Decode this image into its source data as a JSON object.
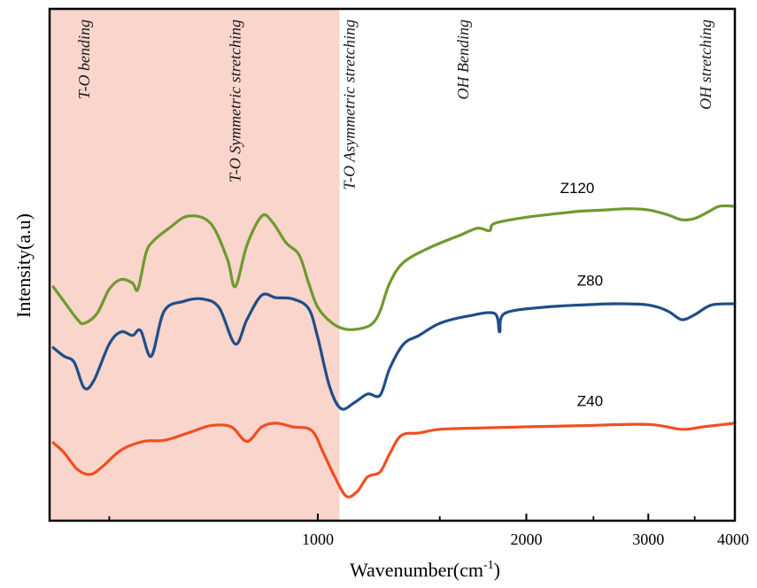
{
  "chart_data": {
    "type": "line",
    "title": "",
    "xlabel": "Wavenumber(cm",
    "xlabel_sup": "-1",
    "xlabel_close": ")",
    "ylabel": "Intensity(a.u)",
    "xscale": "log",
    "xlim": [
      410,
      4000
    ],
    "x_ticks": [
      1000,
      2000,
      3000,
      4000
    ],
    "x_tick_labels": [
      "1000",
      "2000",
      "3000",
      "4000"
    ],
    "x_minor_ticks": [
      500,
      1500,
      2500,
      3500
    ],
    "grid": false,
    "legend": "none",
    "shaded_region": {
      "x": [
        410,
        1075
      ],
      "color": "#f9d5cc"
    },
    "annotations": [
      {
        "text": "T-O bending",
        "x": 460
      },
      {
        "text": "T-O Symmetric stretching",
        "x": 760
      },
      {
        "text": "T-O Asymmetric stretching",
        "x": 1110
      },
      {
        "text": "OH Bending",
        "x": 1620
      },
      {
        "text": "OH stretching",
        "x": 3630
      }
    ],
    "series": [
      {
        "name": "Z120",
        "color": "#6e9a2f",
        "label_x": 2300,
        "points": [
          [
            415,
            2.42
          ],
          [
            430,
            2.3
          ],
          [
            450,
            2.15
          ],
          [
            460,
            2.12
          ],
          [
            480,
            2.2
          ],
          [
            500,
            2.4
          ],
          [
            520,
            2.48
          ],
          [
            540,
            2.45
          ],
          [
            550,
            2.4
          ],
          [
            565,
            2.7
          ],
          [
            580,
            2.8
          ],
          [
            610,
            2.9
          ],
          [
            650,
            3.0
          ],
          [
            700,
            2.94
          ],
          [
            740,
            2.65
          ],
          [
            760,
            2.42
          ],
          [
            790,
            2.76
          ],
          [
            830,
            3.0
          ],
          [
            860,
            2.95
          ],
          [
            900,
            2.78
          ],
          [
            940,
            2.68
          ],
          [
            970,
            2.45
          ],
          [
            1000,
            2.25
          ],
          [
            1050,
            2.12
          ],
          [
            1100,
            2.07
          ],
          [
            1160,
            2.08
          ],
          [
            1200,
            2.12
          ],
          [
            1230,
            2.22
          ],
          [
            1270,
            2.45
          ],
          [
            1330,
            2.62
          ],
          [
            1450,
            2.74
          ],
          [
            1600,
            2.84
          ],
          [
            1700,
            2.9
          ],
          [
            1770,
            2.88
          ],
          [
            1800,
            2.94
          ],
          [
            2000,
            2.99
          ],
          [
            2300,
            3.03
          ],
          [
            2400,
            3.04
          ],
          [
            2600,
            3.05
          ],
          [
            2800,
            3.06
          ],
          [
            3000,
            3.05
          ],
          [
            3200,
            3.01
          ],
          [
            3350,
            2.97
          ],
          [
            3500,
            2.98
          ],
          [
            3650,
            3.03
          ],
          [
            3800,
            3.08
          ],
          [
            4000,
            3.08
          ]
        ]
      },
      {
        "name": "Z80",
        "color": "#1f4e87",
        "label_x": 2400,
        "points": [
          [
            415,
            1.92
          ],
          [
            430,
            1.85
          ],
          [
            445,
            1.8
          ],
          [
            460,
            1.59
          ],
          [
            475,
            1.65
          ],
          [
            500,
            1.95
          ],
          [
            520,
            2.05
          ],
          [
            540,
            2.02
          ],
          [
            555,
            2.06
          ],
          [
            575,
            1.85
          ],
          [
            600,
            2.22
          ],
          [
            640,
            2.3
          ],
          [
            680,
            2.32
          ],
          [
            720,
            2.25
          ],
          [
            760,
            1.95
          ],
          [
            790,
            2.15
          ],
          [
            830,
            2.35
          ],
          [
            870,
            2.33
          ],
          [
            920,
            2.32
          ],
          [
            970,
            2.24
          ],
          [
            1000,
            2.0
          ],
          [
            1040,
            1.6
          ],
          [
            1080,
            1.42
          ],
          [
            1130,
            1.47
          ],
          [
            1180,
            1.54
          ],
          [
            1230,
            1.53
          ],
          [
            1270,
            1.75
          ],
          [
            1330,
            1.95
          ],
          [
            1400,
            2.02
          ],
          [
            1500,
            2.12
          ],
          [
            1650,
            2.18
          ],
          [
            1800,
            2.2
          ],
          [
            1830,
            2.05
          ],
          [
            1860,
            2.2
          ],
          [
            2100,
            2.25
          ],
          [
            2400,
            2.27
          ],
          [
            2700,
            2.28
          ],
          [
            3000,
            2.27
          ],
          [
            3200,
            2.22
          ],
          [
            3350,
            2.15
          ],
          [
            3500,
            2.19
          ],
          [
            3700,
            2.27
          ],
          [
            4000,
            2.28
          ]
        ]
      },
      {
        "name": "Z40",
        "color": "#f04e23",
        "label_x": 2400,
        "points": [
          [
            415,
            1.14
          ],
          [
            430,
            1.06
          ],
          [
            450,
            0.92
          ],
          [
            470,
            0.88
          ],
          [
            490,
            0.95
          ],
          [
            520,
            1.08
          ],
          [
            560,
            1.15
          ],
          [
            600,
            1.16
          ],
          [
            650,
            1.22
          ],
          [
            700,
            1.28
          ],
          [
            750,
            1.27
          ],
          [
            790,
            1.15
          ],
          [
            830,
            1.27
          ],
          [
            870,
            1.3
          ],
          [
            920,
            1.27
          ],
          [
            980,
            1.24
          ],
          [
            1020,
            1.05
          ],
          [
            1060,
            0.85
          ],
          [
            1100,
            0.7
          ],
          [
            1140,
            0.74
          ],
          [
            1180,
            0.86
          ],
          [
            1230,
            0.9
          ],
          [
            1270,
            1.05
          ],
          [
            1320,
            1.2
          ],
          [
            1400,
            1.22
          ],
          [
            1500,
            1.25
          ],
          [
            1700,
            1.26
          ],
          [
            2000,
            1.27
          ],
          [
            2400,
            1.28
          ],
          [
            3000,
            1.29
          ],
          [
            3350,
            1.25
          ],
          [
            3600,
            1.27
          ],
          [
            4000,
            1.3
          ]
        ]
      }
    ],
    "ylim": [
      0.5,
      4.7
    ]
  }
}
